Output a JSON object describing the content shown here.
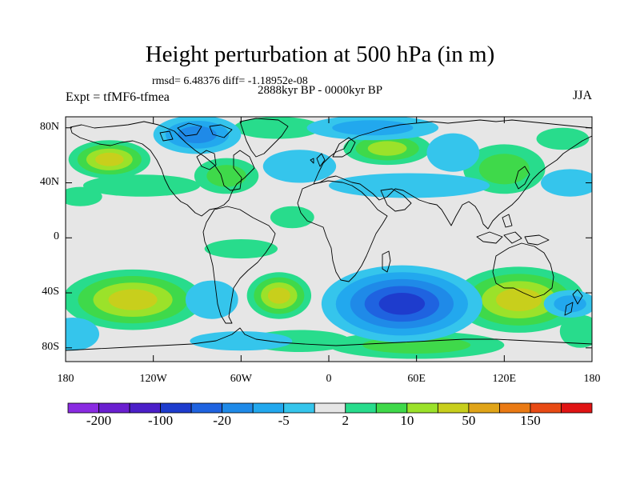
{
  "title": "Height perturbation at 500 hPa (in m)",
  "stats": "rmsd= 6.48376 diff= -1.18952e-08",
  "period": "2888kyr BP - 0000kyr BP",
  "experiment": "Expt = tfMF6-tfmea",
  "season": "JJA",
  "axes": {
    "lat_ticks": [
      {
        "label": "80N",
        "lat": 80
      },
      {
        "label": "40N",
        "lat": 40
      },
      {
        "label": "0",
        "lat": 0
      },
      {
        "label": "40S",
        "lat": -40
      },
      {
        "label": "80S",
        "lat": -80
      }
    ],
    "lon_ticks": [
      {
        "label": "180",
        "lon": -180
      },
      {
        "label": "120W",
        "lon": -120
      },
      {
        "label": "60W",
        "lon": -60
      },
      {
        "label": "0",
        "lon": 0
      },
      {
        "label": "60E",
        "lon": 60
      },
      {
        "label": "120E",
        "lon": 120
      },
      {
        "label": "180",
        "lon": 180
      }
    ]
  },
  "colorbar": {
    "colors": [
      "#8a2be2",
      "#6a1fd0",
      "#4b1fc8",
      "#1e3ccd",
      "#1f63e0",
      "#1f8ae8",
      "#22a8ee",
      "#35c5ec",
      "#e6e6e6",
      "#28dc8c",
      "#3fd94a",
      "#9be22a",
      "#c8cf1c",
      "#e0a418",
      "#ea7a14",
      "#e84a14",
      "#e01414"
    ],
    "labels": [
      {
        "text": "-200",
        "bin": 1
      },
      {
        "text": "-100",
        "bin": 3
      },
      {
        "text": "-20",
        "bin": 5
      },
      {
        "text": "-5",
        "bin": 7
      },
      {
        "text": "2",
        "bin": 9
      },
      {
        "text": "10",
        "bin": 11
      },
      {
        "text": "50",
        "bin": 13
      },
      {
        "text": "150",
        "bin": 15
      }
    ]
  },
  "field": {
    "background": "#e6e6e6",
    "patches": [
      {
        "lon": -134,
        "lat": -45,
        "rx": 48,
        "ry": 22,
        "levels": [
          "#28dc8c",
          "#3fd94a",
          "#9be22a",
          "#c8cf1c"
        ]
      },
      {
        "lon": -150,
        "lat": 57,
        "rx": 28,
        "ry": 14,
        "levels": [
          "#28dc8c",
          "#3fd94a",
          "#9be22a",
          "#c8cf1c"
        ]
      },
      {
        "lon": -128,
        "lat": 38,
        "rx": 40,
        "ry": 8,
        "levels": [
          "#28dc8c"
        ]
      },
      {
        "lon": -170,
        "lat": 30,
        "rx": 15,
        "ry": 7,
        "levels": [
          "#28dc8c"
        ]
      },
      {
        "lon": -70,
        "lat": 45,
        "rx": 22,
        "ry": 13,
        "levels": [
          "#28dc8c",
          "#3fd94a"
        ]
      },
      {
        "lon": -34,
        "lat": -42,
        "rx": 22,
        "ry": 17,
        "levels": [
          "#28dc8c",
          "#3fd94a",
          "#9be22a",
          "#c8cf1c"
        ]
      },
      {
        "lon": -60,
        "lat": -8,
        "rx": 25,
        "ry": 7,
        "levels": [
          "#28dc8c"
        ]
      },
      {
        "lon": -25,
        "lat": 15,
        "rx": 15,
        "ry": 8,
        "levels": [
          "#28dc8c"
        ]
      },
      {
        "lon": 40,
        "lat": 65,
        "rx": 30,
        "ry": 12,
        "levels": [
          "#28dc8c",
          "#3fd94a",
          "#9be22a"
        ]
      },
      {
        "lon": -35,
        "lat": 80,
        "rx": 30,
        "ry": 8,
        "levels": [
          "#28dc8c"
        ]
      },
      {
        "lon": 120,
        "lat": 50,
        "rx": 28,
        "ry": 18,
        "levels": [
          "#28dc8c",
          "#3fd94a"
        ]
      },
      {
        "lon": 160,
        "lat": 72,
        "rx": 18,
        "ry": 8,
        "levels": [
          "#28dc8c"
        ]
      },
      {
        "lon": 130,
        "lat": -45,
        "rx": 45,
        "ry": 24,
        "levels": [
          "#28dc8c",
          "#3fd94a",
          "#9be22a",
          "#c8cf1c"
        ]
      },
      {
        "lon": 60,
        "lat": -78,
        "rx": 60,
        "ry": 10,
        "levels": [
          "#28dc8c",
          "#3fd94a"
        ]
      },
      {
        "lon": 172,
        "lat": -68,
        "rx": 14,
        "ry": 12,
        "levels": [
          "#28dc8c"
        ]
      },
      {
        "lon": -20,
        "lat": -75,
        "rx": 35,
        "ry": 8,
        "levels": [
          "#28dc8c"
        ]
      },
      {
        "lon": 30,
        "lat": 80,
        "rx": 45,
        "ry": 9,
        "levels": [
          "#35c5ec",
          "#22a8ee"
        ]
      },
      {
        "lon": -90,
        "lat": 75,
        "rx": 30,
        "ry": 14,
        "levels": [
          "#35c5ec",
          "#22a8ee",
          "#1f8ae8"
        ]
      },
      {
        "lon": 55,
        "lat": 38,
        "rx": 55,
        "ry": 9,
        "levels": [
          "#35c5ec"
        ]
      },
      {
        "lon": -20,
        "lat": 52,
        "rx": 25,
        "ry": 12,
        "levels": [
          "#35c5ec"
        ]
      },
      {
        "lon": 85,
        "lat": 62,
        "rx": 18,
        "ry": 14,
        "levels": [
          "#35c5ec"
        ]
      },
      {
        "lon": 165,
        "lat": 40,
        "rx": 20,
        "ry": 10,
        "levels": [
          "#35c5ec"
        ]
      },
      {
        "lon": 50,
        "lat": -48,
        "rx": 55,
        "ry": 28,
        "levels": [
          "#35c5ec",
          "#22a8ee",
          "#1f8ae8",
          "#1f63e0",
          "#1e3ccd"
        ]
      },
      {
        "lon": -175,
        "lat": -70,
        "rx": 18,
        "ry": 12,
        "levels": [
          "#35c5ec"
        ]
      },
      {
        "lon": 165,
        "lat": -48,
        "rx": 18,
        "ry": 10,
        "levels": [
          "#35c5ec",
          "#22a8ee"
        ]
      },
      {
        "lon": -80,
        "lat": -45,
        "rx": 18,
        "ry": 14,
        "levels": [
          "#35c5ec"
        ]
      },
      {
        "lon": -60,
        "lat": -75,
        "rx": 35,
        "ry": 7,
        "levels": [
          "#35c5ec"
        ]
      }
    ]
  }
}
